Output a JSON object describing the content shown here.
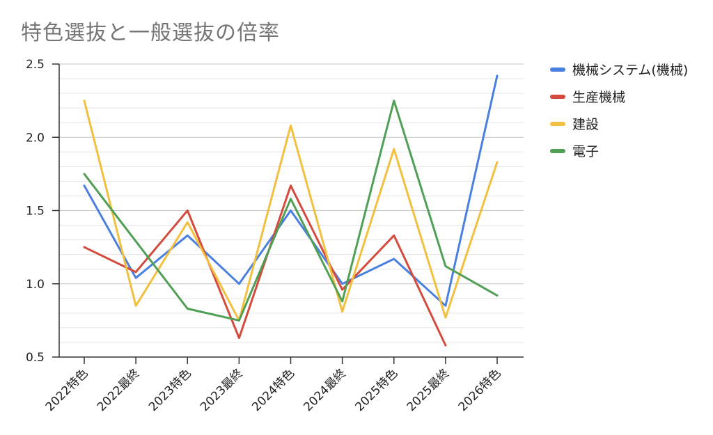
{
  "title": "特色選抜と一般選抜の倍率",
  "chart_data": {
    "type": "line",
    "title": "特色選抜と一般選抜の倍率",
    "xlabel": "",
    "ylabel": "",
    "categories": [
      "2022特色",
      "2022最終",
      "2023特色",
      "2023最終",
      "2024特色",
      "2024最終",
      "2025特色",
      "2025最終",
      "2026特色"
    ],
    "ylim": [
      0.5,
      2.5
    ],
    "yticks": [
      "0.5",
      "1.0",
      "1.5",
      "2.0",
      "2.5"
    ],
    "minor_grid_step": 0.1,
    "grid": true,
    "legend_position": "right",
    "series": [
      {
        "name": "機械システム(機械)",
        "color": "#4a7fe0",
        "values": [
          1.67,
          1.04,
          1.33,
          1.0,
          1.5,
          1.0,
          1.17,
          0.85,
          2.42
        ]
      },
      {
        "name": "生産機械",
        "color": "#d44a3d",
        "values": [
          1.25,
          1.08,
          1.5,
          0.63,
          1.67,
          0.96,
          1.33,
          0.58,
          null
        ]
      },
      {
        "name": "建設",
        "color": "#f2bf3e",
        "values": [
          2.25,
          0.85,
          1.42,
          0.75,
          2.08,
          0.81,
          1.92,
          0.77,
          1.83
        ]
      },
      {
        "name": "電子",
        "color": "#4f9f55",
        "values": [
          1.75,
          1.29,
          0.83,
          0.75,
          1.58,
          0.88,
          2.25,
          1.12,
          0.92
        ]
      }
    ]
  }
}
